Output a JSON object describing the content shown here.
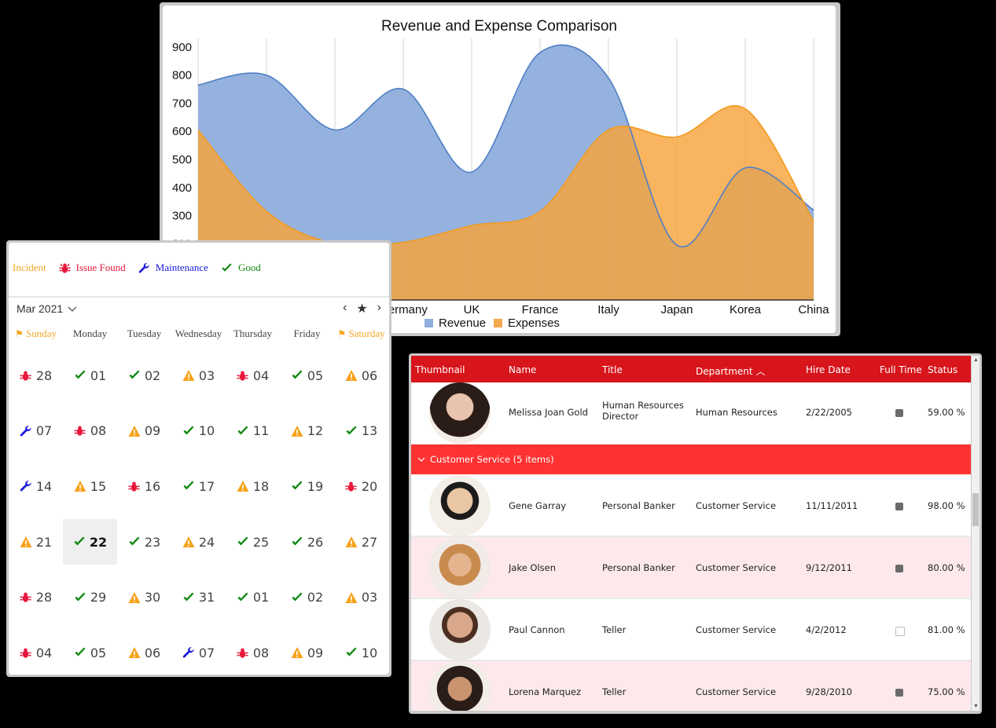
{
  "chart": {
    "title": "Revenue and Expense Comparison",
    "legend": [
      {
        "label": "Revenue",
        "color": "#8faedc"
      },
      {
        "label": "Expenses",
        "color": "#f5a94e"
      }
    ]
  },
  "chart_data": {
    "type": "area",
    "title": "Revenue and Expense Comparison",
    "categories": [
      "",
      "",
      "",
      "Germany",
      "UK",
      "France",
      "Italy",
      "Japan",
      "Korea",
      "China"
    ],
    "series": [
      {
        "name": "Revenue",
        "color": "#6f9bd6",
        "values": [
          765,
          800,
          605,
          750,
          455,
          880,
          790,
          195,
          470,
          320
        ]
      },
      {
        "name": "Expenses",
        "color": "#f7a33a",
        "values": [
          605,
          315,
          200,
          205,
          265,
          315,
          605,
          580,
          680,
          280
        ]
      }
    ],
    "yticks": [
      900,
      800,
      700,
      600,
      500,
      400,
      300,
      200
    ],
    "ylim": [
      0,
      900
    ],
    "grid": "vertical",
    "legend_position": "bottom"
  },
  "calendar": {
    "legend": [
      {
        "label": "Incident",
        "icon": "none",
        "color": "#f5a623"
      },
      {
        "label": "Issue Found",
        "icon": "bug-icon",
        "color": "#e8173c"
      },
      {
        "label": "Maintenance",
        "icon": "wrench-icon",
        "color": "#1a1adb"
      },
      {
        "label": "Good",
        "icon": "check-icon",
        "color": "#138a13"
      }
    ],
    "month_label": "Mar 2021",
    "nav": {
      "prev": "‹",
      "today": "★",
      "next": "›"
    },
    "days": [
      "Sunday",
      "Monday",
      "Tuesday",
      "Wednesday",
      "Thursday",
      "Friday",
      "Saturday"
    ],
    "weeks": [
      [
        {
          "d": "28",
          "s": "bug"
        },
        {
          "d": "01",
          "s": "ok"
        },
        {
          "d": "02",
          "s": "ok"
        },
        {
          "d": "03",
          "s": "warn"
        },
        {
          "d": "04",
          "s": "bug"
        },
        {
          "d": "05",
          "s": "ok"
        },
        {
          "d": "06",
          "s": "warn"
        }
      ],
      [
        {
          "d": "07",
          "s": "wrench"
        },
        {
          "d": "08",
          "s": "bug"
        },
        {
          "d": "09",
          "s": "warn"
        },
        {
          "d": "10",
          "s": "ok"
        },
        {
          "d": "11",
          "s": "ok"
        },
        {
          "d": "12",
          "s": "warn"
        },
        {
          "d": "13",
          "s": "ok"
        }
      ],
      [
        {
          "d": "14",
          "s": "wrench"
        },
        {
          "d": "15",
          "s": "warn"
        },
        {
          "d": "16",
          "s": "bug"
        },
        {
          "d": "17",
          "s": "ok"
        },
        {
          "d": "18",
          "s": "warn"
        },
        {
          "d": "19",
          "s": "ok"
        },
        {
          "d": "20",
          "s": "bug"
        }
      ],
      [
        {
          "d": "21",
          "s": "warn"
        },
        {
          "d": "22",
          "s": "ok",
          "today": true
        },
        {
          "d": "23",
          "s": "ok"
        },
        {
          "d": "24",
          "s": "warn"
        },
        {
          "d": "25",
          "s": "ok"
        },
        {
          "d": "26",
          "s": "ok"
        },
        {
          "d": "27",
          "s": "warn"
        }
      ],
      [
        {
          "d": "28",
          "s": "bug"
        },
        {
          "d": "29",
          "s": "ok"
        },
        {
          "d": "30",
          "s": "warn"
        },
        {
          "d": "31",
          "s": "ok"
        },
        {
          "d": "01",
          "s": "ok"
        },
        {
          "d": "02",
          "s": "ok"
        },
        {
          "d": "03",
          "s": "warn"
        }
      ],
      [
        {
          "d": "04",
          "s": "bug"
        },
        {
          "d": "05",
          "s": "ok"
        },
        {
          "d": "06",
          "s": "warn"
        },
        {
          "d": "07",
          "s": "wrench"
        },
        {
          "d": "08",
          "s": "bug"
        },
        {
          "d": "09",
          "s": "warn"
        },
        {
          "d": "10",
          "s": "ok"
        }
      ]
    ]
  },
  "grid": {
    "columns": [
      "Thumbnail",
      "Name",
      "Title",
      "Department",
      "Hire Date",
      "Full Time",
      "Status"
    ],
    "sort_indicator": "^",
    "group_label": "Customer Service (5 items)",
    "rows_top": [
      {
        "name": "Melissa Joan Gold",
        "title_l1": "Human Resources",
        "title_l2": "Director",
        "department": "Human Resources",
        "hire_date": "2/22/2005",
        "full_time": true,
        "status": "59.00 %"
      }
    ],
    "rows": [
      {
        "name": "Gene Garray",
        "title": "Personal Banker",
        "department": "Customer Service",
        "hire_date": "11/11/2011",
        "full_time": true,
        "status": "98.00 %"
      },
      {
        "name": "Jake Olsen",
        "title": "Personal Banker",
        "department": "Customer Service",
        "hire_date": "9/12/2011",
        "full_time": true,
        "status": "80.00 %"
      },
      {
        "name": "Paul Cannon",
        "title": "Teller",
        "department": "Customer Service",
        "hire_date": "4/2/2012",
        "full_time": false,
        "status": "81.00 %"
      },
      {
        "name": "Lorena Marquez",
        "title": "Teller",
        "department": "Customer Service",
        "hire_date": "9/28/2010",
        "full_time": true,
        "status": "75.00 %"
      }
    ]
  }
}
